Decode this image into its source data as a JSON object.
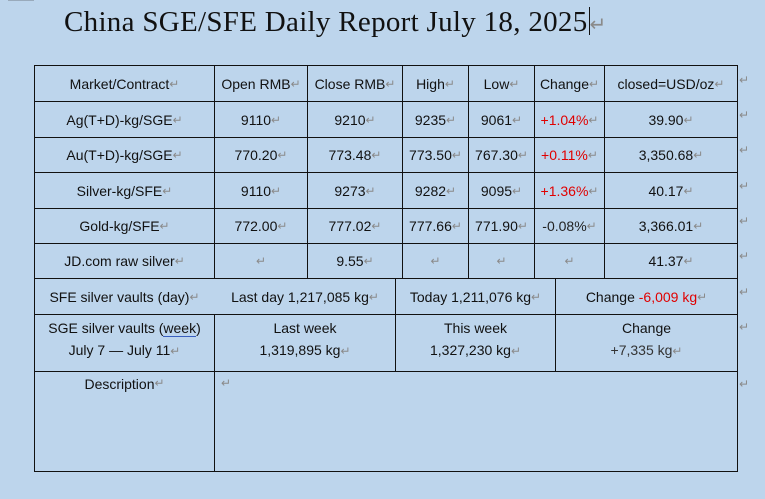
{
  "title": "China SGE/SFE Daily Report July 18, 2025",
  "para_mark": "↵",
  "headers": [
    "Market/Contract",
    "Open RMB",
    "Close RMB",
    "High",
    "Low",
    "Change",
    "closed=USD/oz"
  ],
  "rows": [
    {
      "name": "Ag(T+D)-kg/SGE",
      "open": "9110",
      "close": "9210",
      "high": "9235",
      "low": "9061",
      "change": "+1.04%",
      "usd": "39.90"
    },
    {
      "name": "Au(T+D)-kg/SGE",
      "open": "770.20",
      "close": "773.48",
      "high": "773.50",
      "low": "767.30",
      "change": "+0.11%",
      "usd": "3,350.68"
    },
    {
      "name": "Silver-kg/SFE",
      "open": "9110",
      "close": "9273",
      "high": "9282",
      "low": "9095",
      "change": "+1.36%",
      "usd": "40.17"
    },
    {
      "name": "Gold-kg/SFE",
      "open": "772.00",
      "close": "777.02",
      "high": "777.66",
      "low": "771.90",
      "change": "-0.08%",
      "usd": "3,366.01"
    },
    {
      "name": "JD.com raw silver",
      "open": "",
      "close": "9.55",
      "high": "",
      "low": "",
      "change": "",
      "usd": "41.37"
    }
  ],
  "sfe_vaults": {
    "label": "SFE silver vaults (day)",
    "last_day": "Last day 1,217,085 kg",
    "today": "Today 1,211,076 kg",
    "change_label": "Change ",
    "change_value": "-6,009 kg"
  },
  "sge_vaults": {
    "label_prefix": "SGE silver vaults (",
    "label_week": "week",
    "label_suffix": ")",
    "dates": "July 7 — July 11",
    "last_week_label": "Last week",
    "last_week_value": "1,319,895 kg",
    "this_week_label": "This week",
    "this_week_value": "1,327,230 kg",
    "change_label": "Change",
    "change_value": "+7,335 kg"
  },
  "description_label": "Description",
  "colors": {
    "positive": "#e00000",
    "page_bg": "#bdd5ec"
  }
}
